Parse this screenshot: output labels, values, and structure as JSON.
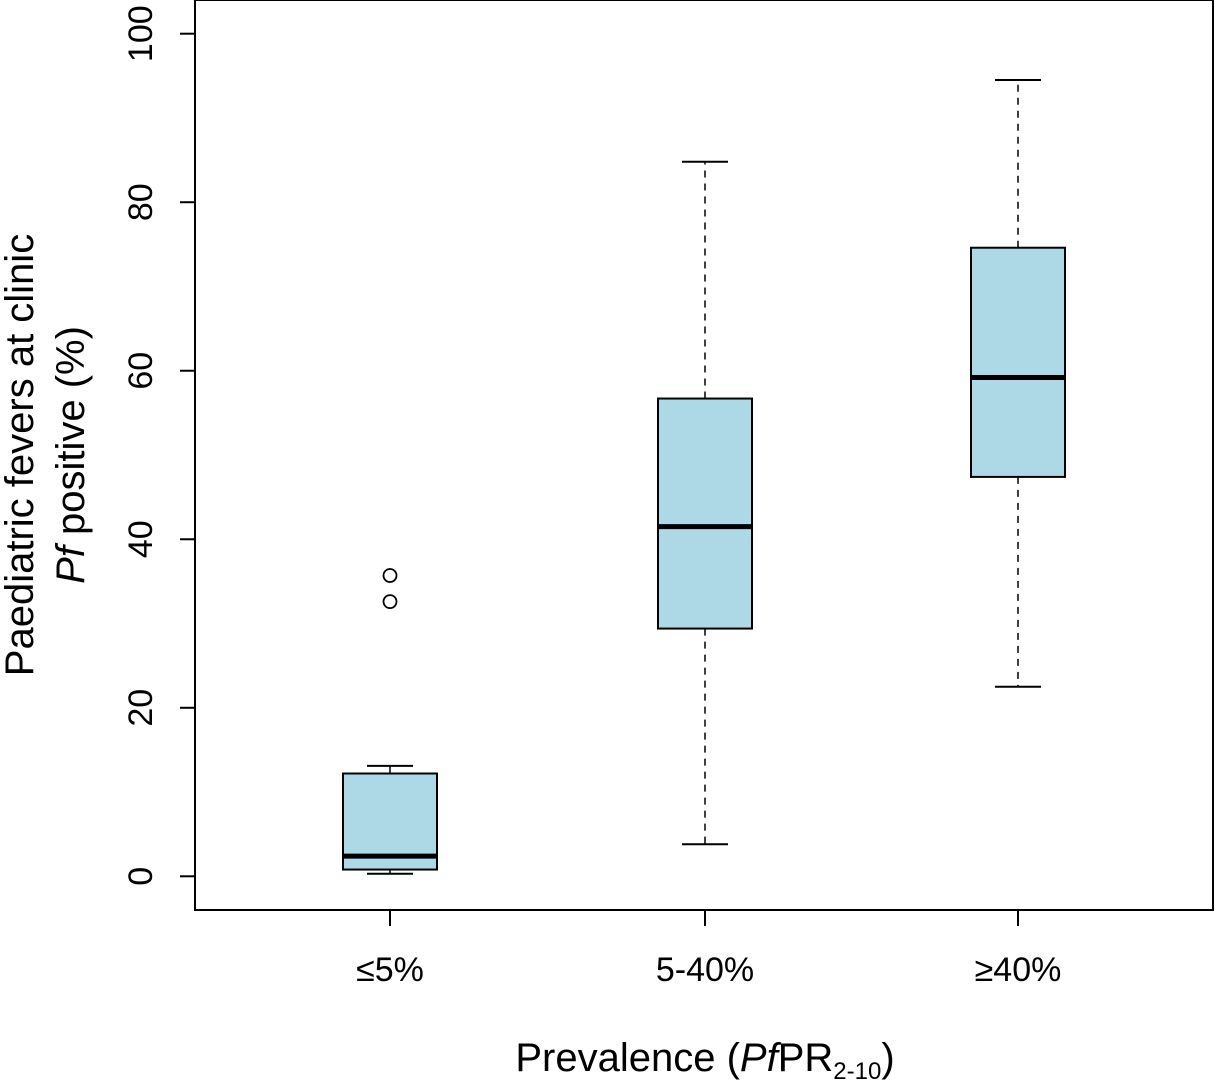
{
  "chart_data": {
    "type": "boxplot",
    "xlabel": {
      "main": "Prevalence (",
      "italic": "Pf",
      "after_italic": "PR",
      "subscript": "2-10",
      "close": ")"
    },
    "ylabel": {
      "line1": "Paediatric fevers at clinic",
      "line2_italic": "Pf",
      "line2_rest": " positive (%)"
    },
    "ylim": [
      -4,
      104
    ],
    "yticks": [
      0,
      20,
      40,
      60,
      80,
      100
    ],
    "categories": [
      "≤5%",
      "5-40%",
      "≥40%"
    ],
    "box_color": "#add8e6",
    "boxes": [
      {
        "category": "≤5%",
        "whisker_low": 0.3,
        "q1": 0.8,
        "median": 2.4,
        "q3": 12.2,
        "whisker_high": 13.1,
        "outliers": [
          32.6,
          35.7
        ]
      },
      {
        "category": "5-40%",
        "whisker_low": 3.8,
        "q1": 29.4,
        "median": 41.5,
        "q3": 56.7,
        "whisker_high": 84.8,
        "outliers": []
      },
      {
        "category": "≥40%",
        "whisker_low": 22.5,
        "q1": 47.4,
        "median": 59.2,
        "q3": 74.6,
        "whisker_high": 94.5,
        "outliers": []
      }
    ]
  }
}
